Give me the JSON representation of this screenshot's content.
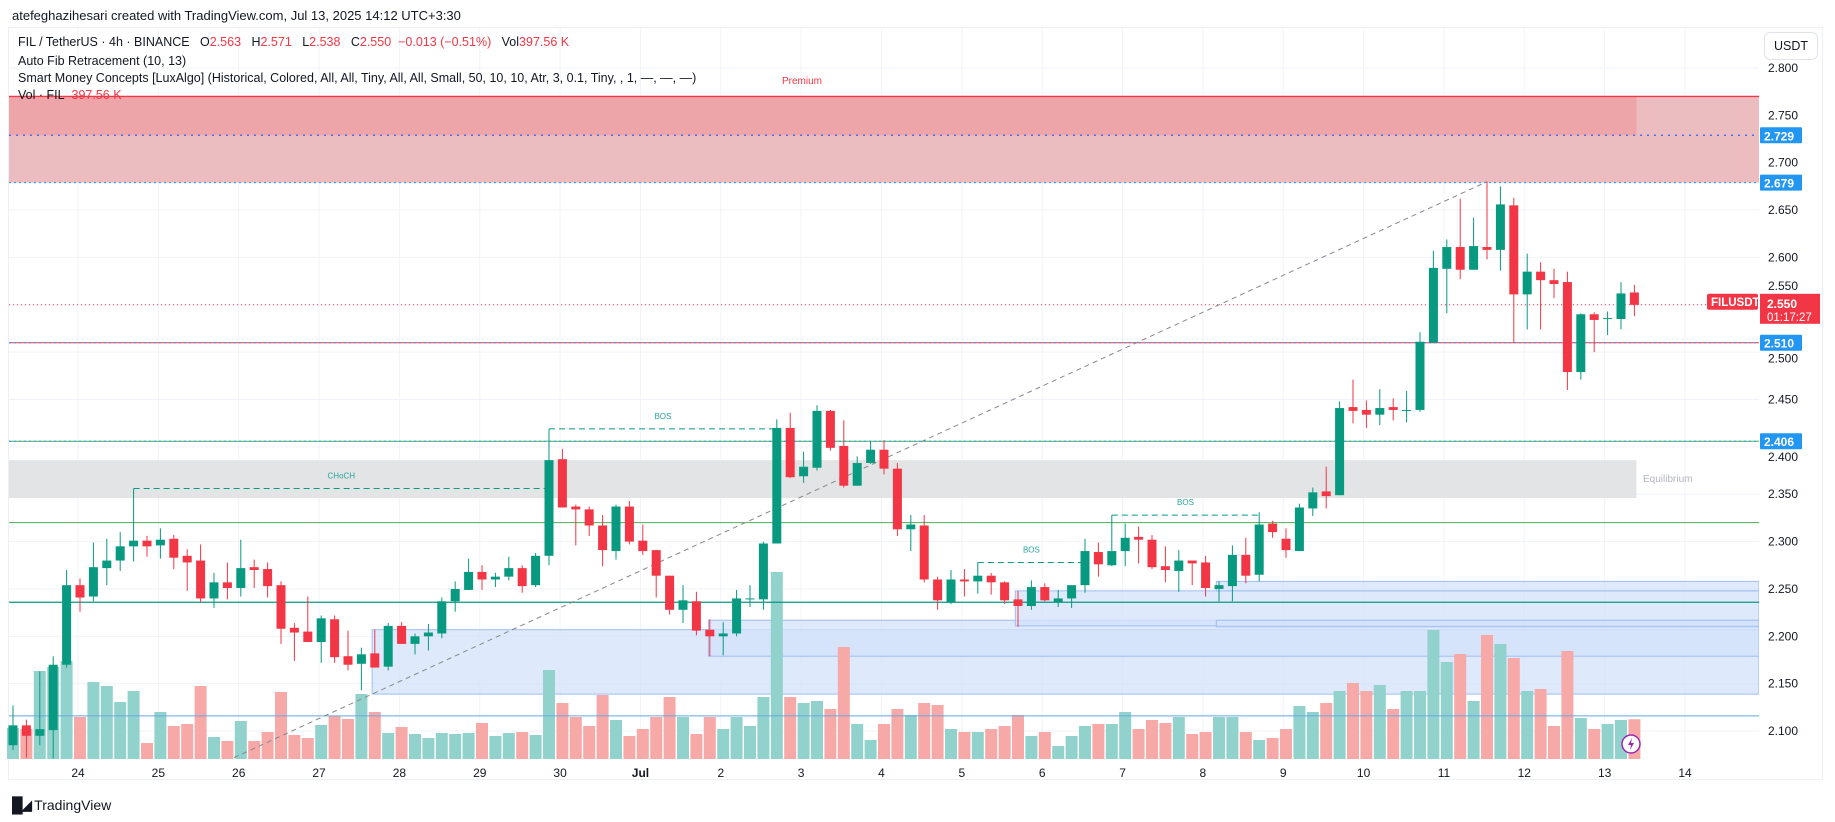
{
  "header": {
    "credit": "atefeghazihesari created with TradingView.com, Jul 13, 2025 14:12 UTC+3:30"
  },
  "legend": {
    "symbol": "FIL / TetherUS · 4h · BINANCE",
    "o_label": "O",
    "o_value": "2.563",
    "h_label": "H",
    "h_value": "2.571",
    "l_label": "L",
    "l_value": "2.538",
    "c_label": "C",
    "c_value": "2.550",
    "change": "−0.013 (−0.51%)",
    "vol_label": "Vol",
    "vol_value": "397.56 K",
    "indicator_fib": "Auto Fib Retracement (10, 13)",
    "indicator_smc": "Smart Money Concepts [LuxAlgo] (Historical, Colored, All, All, Tiny, All, All, Small, 50, 10, 10, Atr, 3, 0.1, Tiny, , 1, —, —, —)",
    "vol_indicator": "Vol · FIL",
    "vol_indicator_value": "397.56 K"
  },
  "price_axis": {
    "currency_button": "USDT",
    "ticks": [
      "2.800",
      "2.750",
      "2.700",
      "2.650",
      "2.600",
      "2.550",
      "2.500",
      "2.450",
      "2.400",
      "2.350",
      "2.300",
      "2.250",
      "2.200",
      "2.150",
      "2.100"
    ],
    "badges": [
      {
        "value": "2.729",
        "color": "#2196f3"
      },
      {
        "value": "2.679",
        "color": "#2196f3"
      },
      {
        "value": "2.510",
        "color": "#2196f3"
      },
      {
        "value": "2.406",
        "color": "#2196f3"
      }
    ],
    "last_price": {
      "symbol": "FILUSDT",
      "value": "2.550",
      "countdown": "01:17:27",
      "color": "#f23645"
    }
  },
  "time_axis": {
    "labels": [
      "24",
      "25",
      "26",
      "27",
      "28",
      "29",
      "30",
      "Jul",
      "2",
      "3",
      "4",
      "5",
      "6",
      "7",
      "8",
      "9",
      "10",
      "11",
      "12",
      "13",
      "14"
    ]
  },
  "annotations": {
    "premium": "Premium",
    "equilibrium": "Equilibrium",
    "choch": "CHoCH",
    "bos": "BOS"
  },
  "footer": {
    "brand": "TradingView"
  },
  "colors": {
    "up": "#089981",
    "down": "#f23645",
    "vol_up": "#92d2cc",
    "vol_down": "#f7a9a7",
    "premium_zone": "#ebbcc0",
    "premium_zone_dark": "#eda5aa",
    "equilibrium_zone": "#e3e4e6",
    "demand_zone": "#d3e1fb",
    "structure": "#089981",
    "badge_blue": "#2196f3"
  },
  "chart_data": {
    "type": "candlestick",
    "interval": "4h",
    "ylim": [
      2.07,
      2.8
    ],
    "ohlc": [
      [
        2.085,
        2.127,
        2.08,
        2.106
      ],
      [
        2.106,
        2.112,
        2.072,
        2.095
      ],
      [
        2.095,
        2.163,
        2.085,
        2.102
      ],
      [
        2.101,
        2.179,
        2.071,
        2.17
      ],
      [
        2.17,
        2.27,
        2.167,
        2.254
      ],
      [
        2.254,
        2.261,
        2.226,
        2.241
      ],
      [
        2.242,
        2.299,
        2.237,
        2.273
      ],
      [
        2.272,
        2.303,
        2.254,
        2.28
      ],
      [
        2.28,
        2.31,
        2.269,
        2.295
      ],
      [
        2.295,
        2.356,
        2.279,
        2.301
      ],
      [
        2.301,
        2.306,
        2.284,
        2.295
      ],
      [
        2.296,
        2.314,
        2.282,
        2.302
      ],
      [
        2.303,
        2.307,
        2.271,
        2.283
      ],
      [
        2.285,
        2.292,
        2.248,
        2.278
      ],
      [
        2.28,
        2.297,
        2.236,
        2.24
      ],
      [
        2.24,
        2.267,
        2.23,
        2.257
      ],
      [
        2.257,
        2.278,
        2.239,
        2.251
      ],
      [
        2.251,
        2.302,
        2.242,
        2.272
      ],
      [
        2.273,
        2.281,
        2.251,
        2.27
      ],
      [
        2.271,
        2.278,
        2.241,
        2.253
      ],
      [
        2.254,
        2.258,
        2.192,
        2.208
      ],
      [
        2.209,
        2.214,
        2.174,
        2.204
      ],
      [
        2.205,
        2.242,
        2.194,
        2.194
      ],
      [
        2.194,
        2.222,
        2.172,
        2.219
      ],
      [
        2.218,
        2.222,
        2.172,
        2.178
      ],
      [
        2.179,
        2.206,
        2.164,
        2.17
      ],
      [
        2.171,
        2.188,
        2.143,
        2.181
      ],
      [
        2.182,
        2.207,
        2.167,
        2.167
      ],
      [
        2.168,
        2.214,
        2.164,
        2.211
      ],
      [
        2.211,
        2.215,
        2.192,
        2.192
      ],
      [
        2.192,
        2.203,
        2.181,
        2.2
      ],
      [
        2.2,
        2.213,
        2.185,
        2.204
      ],
      [
        2.203,
        2.241,
        2.198,
        2.237
      ],
      [
        2.237,
        2.258,
        2.226,
        2.25
      ],
      [
        2.249,
        2.282,
        2.249,
        2.268
      ],
      [
        2.268,
        2.275,
        2.249,
        2.26
      ],
      [
        2.26,
        2.267,
        2.252,
        2.263
      ],
      [
        2.263,
        2.284,
        2.259,
        2.272
      ],
      [
        2.272,
        2.275,
        2.246,
        2.253
      ],
      [
        2.254,
        2.288,
        2.252,
        2.285
      ],
      [
        2.285,
        2.419,
        2.275,
        2.386
      ],
      [
        2.387,
        2.398,
        2.336,
        2.336
      ],
      [
        2.337,
        2.339,
        2.296,
        2.334
      ],
      [
        2.334,
        2.337,
        2.306,
        2.317
      ],
      [
        2.317,
        2.328,
        2.274,
        2.291
      ],
      [
        2.29,
        2.339,
        2.281,
        2.337
      ],
      [
        2.337,
        2.343,
        2.297,
        2.3
      ],
      [
        2.301,
        2.318,
        2.286,
        2.29
      ],
      [
        2.291,
        2.291,
        2.241,
        2.264
      ],
      [
        2.264,
        2.264,
        2.223,
        2.228
      ],
      [
        2.228,
        2.254,
        2.214,
        2.238
      ],
      [
        2.237,
        2.247,
        2.201,
        2.206
      ],
      [
        2.207,
        2.218,
        2.179,
        2.2
      ],
      [
        2.2,
        2.215,
        2.18,
        2.203
      ],
      [
        2.203,
        2.249,
        2.2,
        2.24
      ],
      [
        2.24,
        2.254,
        2.231,
        2.24
      ],
      [
        2.239,
        2.3,
        2.228,
        2.298
      ],
      [
        2.298,
        2.429,
        2.298,
        2.42
      ],
      [
        2.42,
        2.436,
        2.367,
        2.368
      ],
      [
        2.369,
        2.395,
        2.362,
        2.379
      ],
      [
        2.378,
        2.444,
        2.375,
        2.438
      ],
      [
        2.438,
        2.439,
        2.396,
        2.399
      ],
      [
        2.401,
        2.428,
        2.357,
        2.359
      ],
      [
        2.359,
        2.39,
        2.359,
        2.383
      ],
      [
        2.383,
        2.406,
        2.382,
        2.397
      ],
      [
        2.397,
        2.407,
        2.371,
        2.377
      ],
      [
        2.377,
        2.383,
        2.306,
        2.313
      ],
      [
        2.313,
        2.328,
        2.29,
        2.318
      ],
      [
        2.317,
        2.328,
        2.257,
        2.26
      ],
      [
        2.26,
        2.263,
        2.228,
        2.238
      ],
      [
        2.236,
        2.27,
        2.234,
        2.26
      ],
      [
        2.26,
        2.271,
        2.242,
        2.258
      ],
      [
        2.258,
        2.278,
        2.245,
        2.264
      ],
      [
        2.264,
        2.267,
        2.244,
        2.257
      ],
      [
        2.257,
        2.258,
        2.234,
        2.238
      ],
      [
        2.239,
        2.248,
        2.21,
        2.232
      ],
      [
        2.232,
        2.259,
        2.228,
        2.252
      ],
      [
        2.252,
        2.256,
        2.237,
        2.238
      ],
      [
        2.236,
        2.249,
        2.231,
        2.24
      ],
      [
        2.24,
        2.254,
        2.23,
        2.254
      ],
      [
        2.254,
        2.303,
        2.246,
        2.29
      ],
      [
        2.289,
        2.299,
        2.263,
        2.276
      ],
      [
        2.275,
        2.328,
        2.274,
        2.29
      ],
      [
        2.29,
        2.319,
        2.274,
        2.304
      ],
      [
        2.305,
        2.316,
        2.277,
        2.302
      ],
      [
        2.302,
        2.307,
        2.271,
        2.273
      ],
      [
        2.274,
        2.295,
        2.257,
        2.27
      ],
      [
        2.269,
        2.291,
        2.247,
        2.28
      ],
      [
        2.28,
        2.28,
        2.254,
        2.277
      ],
      [
        2.278,
        2.285,
        2.242,
        2.251
      ],
      [
        2.25,
        2.258,
        2.237,
        2.254
      ],
      [
        2.253,
        2.296,
        2.237,
        2.286
      ],
      [
        2.286,
        2.304,
        2.256,
        2.264
      ],
      [
        2.265,
        2.331,
        2.258,
        2.318
      ],
      [
        2.319,
        2.322,
        2.304,
        2.31
      ],
      [
        2.303,
        2.314,
        2.283,
        2.291
      ],
      [
        2.29,
        2.34,
        2.29,
        2.336
      ],
      [
        2.335,
        2.357,
        2.327,
        2.352
      ],
      [
        2.353,
        2.379,
        2.335,
        2.348
      ],
      [
        2.349,
        2.448,
        2.349,
        2.441
      ],
      [
        2.442,
        2.471,
        2.425,
        2.438
      ],
      [
        2.439,
        2.449,
        2.42,
        2.434
      ],
      [
        2.434,
        2.461,
        2.423,
        2.441
      ],
      [
        2.442,
        2.451,
        2.428,
        2.439
      ],
      [
        2.438,
        2.459,
        2.426,
        2.439
      ],
      [
        2.439,
        2.521,
        2.437,
        2.511
      ],
      [
        2.51,
        2.607,
        2.51,
        2.589
      ],
      [
        2.588,
        2.619,
        2.541,
        2.611
      ],
      [
        2.611,
        2.662,
        2.577,
        2.587
      ],
      [
        2.587,
        2.642,
        2.587,
        2.612
      ],
      [
        2.611,
        2.68,
        2.598,
        2.608
      ],
      [
        2.608,
        2.675,
        2.586,
        2.656
      ],
      [
        2.655,
        2.663,
        2.51,
        2.561
      ],
      [
        2.561,
        2.604,
        2.524,
        2.585
      ],
      [
        2.585,
        2.595,
        2.524,
        2.576
      ],
      [
        2.576,
        2.588,
        2.557,
        2.572
      ],
      [
        2.574,
        2.585,
        2.46,
        2.479
      ],
      [
        2.479,
        2.541,
        2.471,
        2.54
      ],
      [
        2.54,
        2.542,
        2.5,
        2.534
      ],
      [
        2.535,
        2.543,
        2.518,
        2.536
      ],
      [
        2.535,
        2.574,
        2.524,
        2.562
      ],
      [
        2.563,
        2.571,
        2.538,
        2.55
      ]
    ],
    "volume_k": [
      310,
      300,
      880,
      920,
      980,
      420,
      770,
      730,
      570,
      680,
      160,
      470,
      330,
      350,
      730,
      220,
      180,
      380,
      180,
      270,
      670,
      240,
      210,
      340,
      430,
      400,
      650,
      470,
      260,
      320,
      250,
      210,
      260,
      250,
      260,
      360,
      230,
      260,
      270,
      240,
      890,
      560,
      420,
      330,
      640,
      390,
      230,
      300,
      420,
      620,
      420,
      250,
      420,
      300,
      420,
      330,
      620,
      1870,
      620,
      560,
      580,
      500,
      1120,
      350,
      190,
      350,
      500,
      440,
      560,
      540,
      300,
      270,
      270,
      300,
      330,
      440,
      230,
      270,
      130,
      230,
      330,
      350,
      350,
      470,
      300,
      390,
      360,
      420,
      250,
      270,
      420,
      420,
      270,
      190,
      210,
      300,
      530,
      470,
      560,
      680,
      760,
      680,
      740,
      500,
      680,
      680,
      1290,
      970,
      1050,
      580,
      1240,
      1150,
      1010,
      680,
      700,
      330,
      1080,
      410,
      300,
      350,
      390,
      397.56
    ],
    "levels": {
      "premium_top": 2.77,
      "fib_upper": 2.729,
      "fib_high": 2.679,
      "fib_mid": 2.51,
      "fib_low": 2.406,
      "equilibrium": [
        2.346,
        2.386
      ],
      "green_line": 2.32,
      "teal_line": 2.236,
      "blue_line": 2.116,
      "last": 2.55
    },
    "fib_trend": {
      "from": [
        16.5,
        2.072
      ],
      "to": [
        110,
        2.68
      ]
    },
    "demand_zones": [
      {
        "start": 26.8,
        "range": [
          2.139,
          2.207
        ]
      },
      {
        "start": 51.9,
        "range": [
          2.179,
          2.217
        ]
      },
      {
        "start": 74.8,
        "range": [
          2.211,
          2.248
        ]
      },
      {
        "start": 89.8,
        "range": [
          2.248,
          2.258
        ]
      },
      {
        "start": 89.8,
        "range": [
          2.21,
          2.217
        ]
      }
    ],
    "structures": [
      {
        "label": "CHoCH",
        "from": 9,
        "to": 40,
        "price": 2.356
      },
      {
        "label": "BOS",
        "from": 40,
        "to": 57,
        "price": 2.419
      },
      {
        "label": "BOS",
        "from": 72,
        "to": 80,
        "price": 2.278
      },
      {
        "label": "BOS",
        "from": 82,
        "to": 93,
        "price": 2.328
      }
    ]
  }
}
